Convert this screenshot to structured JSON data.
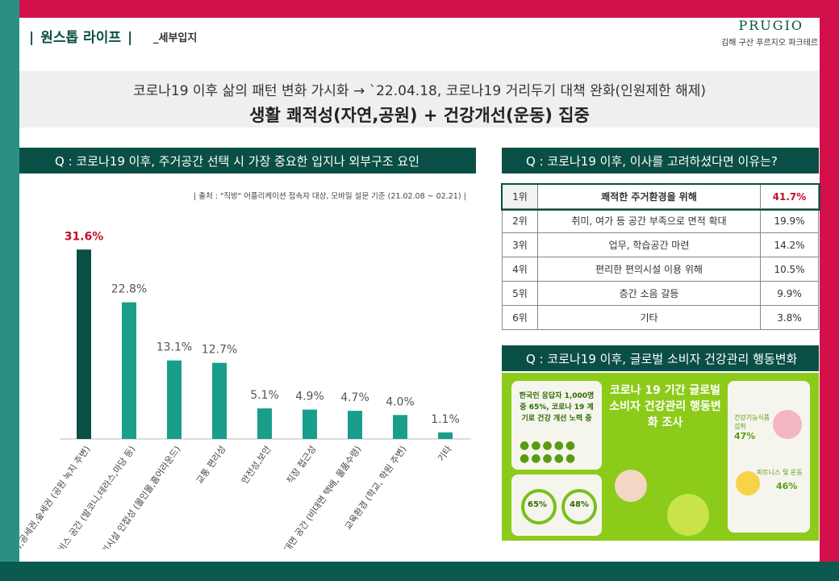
{
  "header": {
    "title": "원스톱 라이프",
    "subtitle": "_세부입지",
    "brand": "PRUGIO",
    "brand_sub": "김해 구산 푸르지오 파크테르"
  },
  "banner": {
    "line1": "코로나19 이후 삶의 패턴 변화 가시화 → `22.04.18, 코로나19 거리두기 대책 완화(인원제한 해제)",
    "line2": "생활 쾌적성(자연,공원) + 건강개선(운동) 집중"
  },
  "left_panel": {
    "question": "Q : 코로나19 이후, 주거공간 선택 시 가장 중요한 입지나 외부구조 요인",
    "source": "| 출처 : \"직방\" 어플리케이션 접속자 대상, 모바일 설문 기준 (21.02.08 ~ 02.21) |"
  },
  "chart_data": {
    "type": "bar",
    "categories": [
      "쾌적성,공세권,숲세권 (공원 녹지 주변)",
      "서비스 공간 (발코니,테라스,마당 등)",
      "편의시설 인접성 (몰인몰,홈어라운드)",
      "교통 편리성",
      "안전성,보안",
      "직장 접근성",
      "비대면 공간 (비대면 택배, 물품수령)",
      "교육환경 (학교, 학원 주변)",
      "기타"
    ],
    "values": [
      31.6,
      22.8,
      13.1,
      12.7,
      5.1,
      4.9,
      4.7,
      4.0,
      1.1
    ],
    "value_labels": [
      "31.6%",
      "22.8%",
      "13.1%",
      "12.7%",
      "5.1%",
      "4.9%",
      "4.7%",
      "4.0%",
      "1.1%"
    ],
    "ylim": [
      0,
      35
    ],
    "colors": {
      "highlight": "#0a4f46",
      "bar": "#1a9e8c",
      "highlight_label": "#c0102a",
      "label": "#555555"
    }
  },
  "right_panel": {
    "question": "Q : 코로나19 이후, 이사를 고려하셨다면 이유는?",
    "rows": [
      {
        "rank": "1위",
        "reason": "쾌적한 주거환경을 위해",
        "pct": "41.7%"
      },
      {
        "rank": "2위",
        "reason": "취미, 여가 등 공간 부족으로 면적 확대",
        "pct": "19.9%"
      },
      {
        "rank": "3위",
        "reason": "업무, 학습공간 마련",
        "pct": "14.2%"
      },
      {
        "rank": "4위",
        "reason": "편리한 편의시설 이용 위해",
        "pct": "10.5%"
      },
      {
        "rank": "5위",
        "reason": "층간 소음 갈등",
        "pct": "9.9%"
      },
      {
        "rank": "6위",
        "reason": "기타",
        "pct": "3.8%"
      }
    ]
  },
  "infographic": {
    "question": "Q : 코로나19 이후, 글로벌 소비자 건강관리 행동변화",
    "title": "코로나 19 기간 글로벌 소비자 건강관리 행동변화 조사",
    "left_card": "한국인 응답자 1,000명 중 65%, 코로나 19 계기로 건강 개선 노력 중",
    "left_pct": "65%",
    "left_pct2": "48%",
    "right_pct1_label": "건강기능식품 섭취",
    "right_pct1": "47%",
    "right_pct2_label": "피트니스 및 운동",
    "right_pct2": "46%"
  },
  "watermark": "김해 구산 푸르지오 파크테르"
}
